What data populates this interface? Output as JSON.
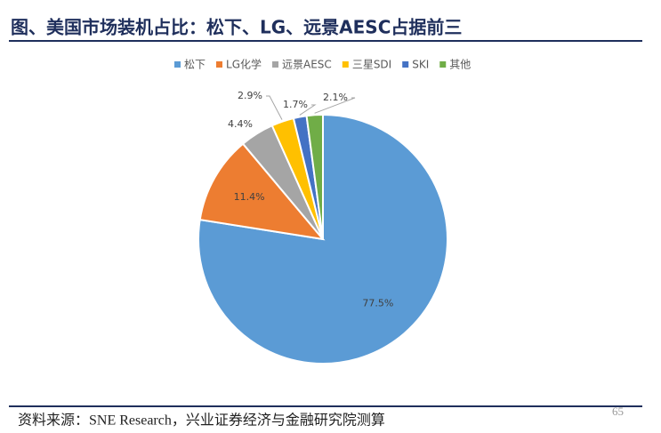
{
  "title": "图、美国市场装机占比：松下、LG、远景AESC占据前三",
  "source": "资料来源：SNE Research，兴业证券经济与金融研究院测算",
  "page_number": "65",
  "chart_data": {
    "type": "pie",
    "categories": [
      "松下",
      "LG化学",
      "远景AESC",
      "三星SDI",
      "SKI",
      "其他"
    ],
    "values": [
      77.5,
      11.4,
      4.4,
      2.9,
      1.7,
      2.1
    ],
    "value_labels": [
      "77.5%",
      "11.4%",
      "4.4%",
      "2.9%",
      "1.7%",
      "2.1%"
    ],
    "colors": [
      "#5b9bd5",
      "#ed7d31",
      "#a5a5a5",
      "#ffc000",
      "#4472c4",
      "#70ad47"
    ],
    "legend": "top"
  }
}
